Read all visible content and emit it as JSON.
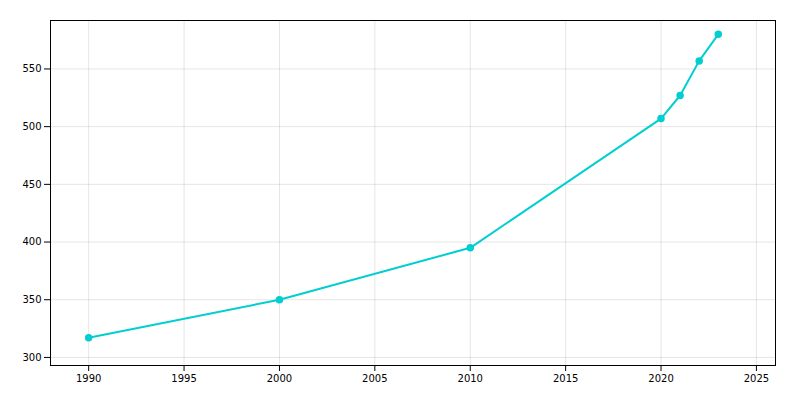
{
  "chart_data": {
    "type": "line",
    "x": [
      1990,
      2000,
      2010,
      2020,
      2021,
      2022,
      2023
    ],
    "values": [
      317,
      350,
      395,
      507,
      527,
      557,
      580
    ],
    "color": "#00CED1",
    "marker": "circle",
    "xlim": [
      1988,
      2026
    ],
    "ylim": [
      293,
      592
    ],
    "xticks": [
      1990,
      1995,
      2000,
      2005,
      2010,
      2015,
      2020,
      2025
    ],
    "yticks": [
      300,
      350,
      400,
      450,
      500,
      550
    ],
    "grid": true
  }
}
